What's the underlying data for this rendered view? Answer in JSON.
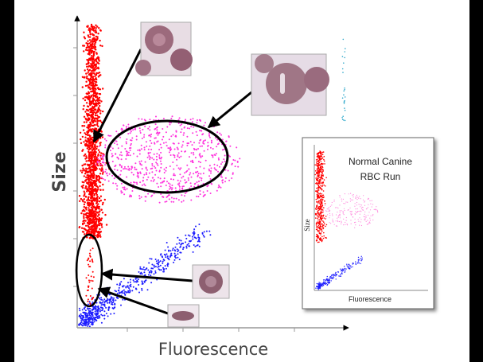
{
  "main_plot": {
    "y_axis_label": "Size",
    "x_axis_label": "Fluorescence"
  },
  "inset": {
    "title_lines": [
      "Normal Canine",
      "RBC Run"
    ],
    "y_axis_label": "Size",
    "x_axis_label": "Fluorescence"
  }
}
